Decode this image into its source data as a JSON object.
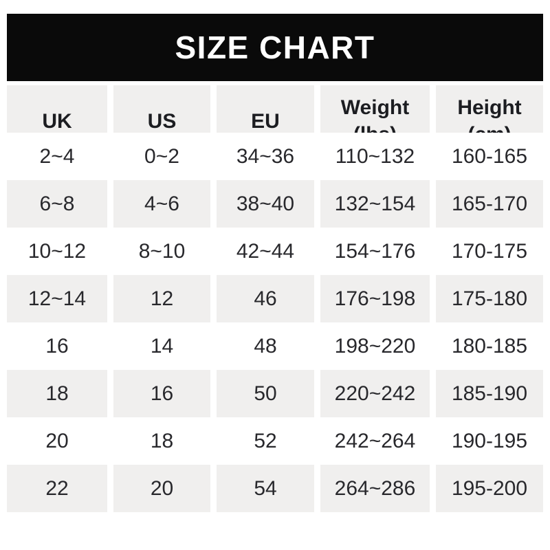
{
  "title": "SIZE CHART",
  "table": {
    "columns": [
      {
        "label": "UK",
        "sub": ""
      },
      {
        "label": "US",
        "sub": ""
      },
      {
        "label": "EU",
        "sub": ""
      },
      {
        "label": "Weight",
        "sub": "(lbs)"
      },
      {
        "label": "Height",
        "sub": "(cm)"
      }
    ],
    "rows": [
      [
        "2~4",
        "0~2",
        "34~36",
        "110~132",
        "160-165"
      ],
      [
        "6~8",
        "4~6",
        "38~40",
        "132~154",
        "165-170"
      ],
      [
        "10~12",
        "8~10",
        "42~44",
        "154~176",
        "170-175"
      ],
      [
        "12~14",
        "12",
        "46",
        "176~198",
        "175-180"
      ],
      [
        "16",
        "14",
        "48",
        "198~220",
        "180-185"
      ],
      [
        "18",
        "16",
        "50",
        "220~242",
        "185-190"
      ],
      [
        "20",
        "18",
        "52",
        "242~264",
        "190-195"
      ],
      [
        "22",
        "20",
        "54",
        "264~286",
        "195-200"
      ]
    ]
  },
  "colors": {
    "page_bg": "#ffffff",
    "banner_bg": "#0a0a0a",
    "banner_text": "#ffffff",
    "row_gray": "#f0efee",
    "row_white": "#ffffff",
    "cell_text": "#28282c",
    "header_text": "#1c1d21"
  }
}
